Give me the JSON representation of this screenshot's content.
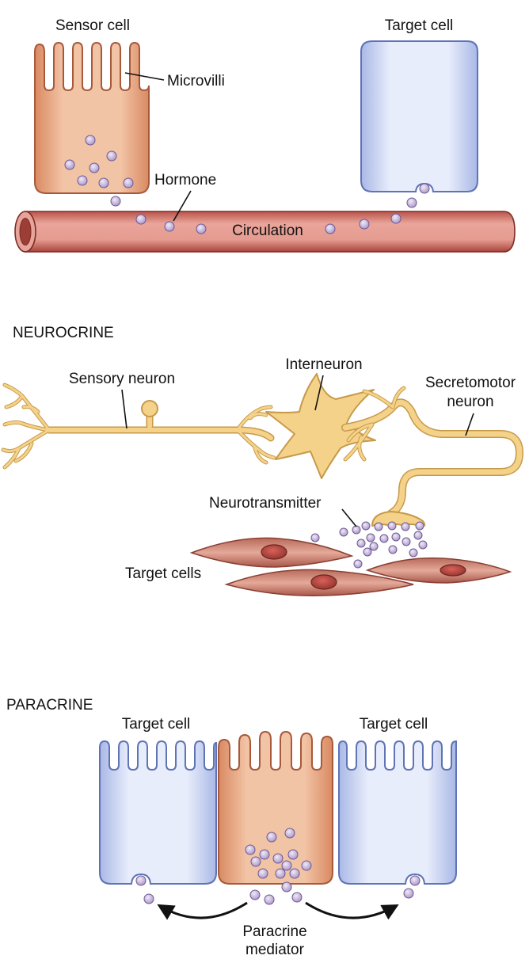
{
  "endocrine": {
    "sensor_cell_label": "Sensor cell",
    "target_cell_label": "Target cell",
    "microvilli_label": "Microvilli",
    "hormone_label": "Hormone",
    "circulation_label": "Circulation"
  },
  "neurocrine": {
    "title": "NEUROCRINE",
    "sensory_neuron_label": "Sensory neuron",
    "interneuron_label": "Interneuron",
    "secretomotor_label_line1": "Secretomotor",
    "secretomotor_label_line2": "neuron",
    "neurotransmitter_label": "Neurotransmitter",
    "target_cells_label": "Target cells"
  },
  "paracrine": {
    "title": "PARACRINE",
    "left_target_label": "Target cell",
    "right_target_label": "Target cell",
    "mediator_label_line1": "Paracrine",
    "mediator_label_line2": "mediator"
  },
  "colors": {
    "sensor_cell": "#e8b08e",
    "target_cell": "#cdd7f2",
    "vessel": "#c96a5f",
    "neuron": "#f5d28a",
    "smooth_muscle": "#c98475",
    "granule": "#c7b3dc"
  }
}
